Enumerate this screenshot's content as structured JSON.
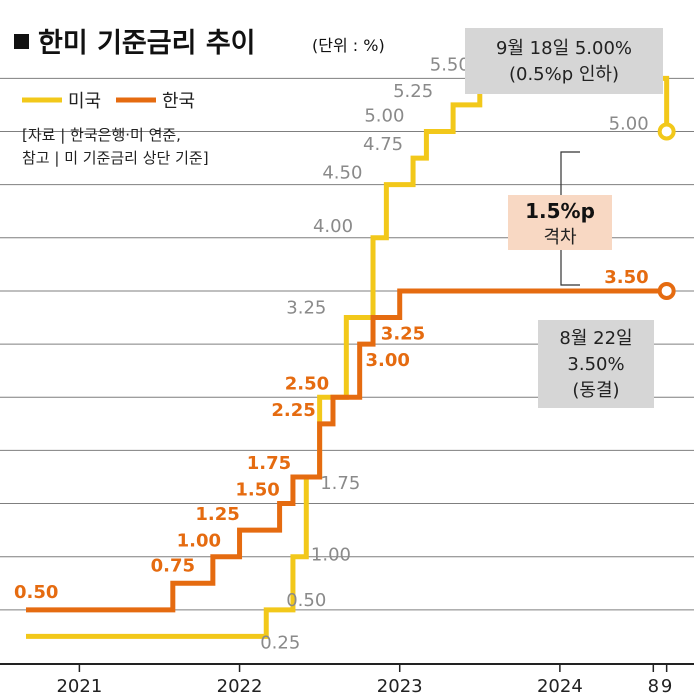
{
  "title": "한미 기준금리 추이",
  "unit": "(단위 : %)",
  "legend": [
    {
      "label": "미국",
      "color": "#f2c81a"
    },
    {
      "label": "한국",
      "color": "#e56b10"
    }
  ],
  "source_lines": [
    "[자료 | 한국은행·미 연준,",
    "참고 | 미 기준금리 상단 기준]"
  ],
  "callouts": {
    "us": [
      "9월 18일 5.00%",
      "(0.5%p 인하)"
    ],
    "kr": [
      "8월 22일",
      "3.50%",
      "(동결)"
    ],
    "gap": [
      "1.5%p",
      "격차"
    ]
  },
  "colors": {
    "us": "#f2c81a",
    "kr": "#e56b10",
    "grid": "#7f7f7f",
    "callout_bg": "#d6d6d6",
    "gap_bg": "#f8d8c3"
  },
  "chart_data": {
    "type": "line",
    "step": true,
    "x_ticks": [
      {
        "label": "2021",
        "x": "2021-01"
      },
      {
        "label": "2022",
        "x": "2022-01"
      },
      {
        "label": "2023",
        "x": "2023-01"
      },
      {
        "label": "2024",
        "x": "2024-01"
      },
      {
        "label": "8",
        "x": "2024-08"
      },
      {
        "label": "9",
        "x": "2024-09"
      }
    ],
    "xlim": [
      "2020-09",
      "2024-10"
    ],
    "ylim": [
      0,
      6
    ],
    "grid": true,
    "legend_position": "top-left",
    "series": [
      {
        "name": "미국",
        "color": "#f2c81a",
        "points": [
          {
            "x": "2020-09",
            "y": 0.25
          },
          {
            "x": "2022-03",
            "y": 0.5,
            "label": "0.50"
          },
          {
            "x": "2022-05",
            "y": 1.0,
            "label": "1.00"
          },
          {
            "x": "2022-06",
            "y": 1.75,
            "label": "1.75"
          },
          {
            "x": "2022-07",
            "y": 2.5
          },
          {
            "x": "2022-09",
            "y": 3.25,
            "label": "3.25"
          },
          {
            "x": "2022-11",
            "y": 4.0,
            "label": "4.00"
          },
          {
            "x": "2022-12",
            "y": 4.5,
            "label": "4.50"
          },
          {
            "x": "2023-02",
            "y": 4.75,
            "label": "4.75"
          },
          {
            "x": "2023-03",
            "y": 5.0,
            "label": "5.00"
          },
          {
            "x": "2023-05",
            "y": 5.25,
            "label": "5.25"
          },
          {
            "x": "2023-07",
            "y": 5.5,
            "label": "5.50"
          },
          {
            "x": "2024-09",
            "y": 5.0,
            "label": "5.00"
          }
        ],
        "extra_labels": [
          {
            "x": "2020-09",
            "y": 0.25,
            "label": "0.25"
          }
        ]
      },
      {
        "name": "한국",
        "color": "#e56b10",
        "points": [
          {
            "x": "2020-09",
            "y": 0.5,
            "label": "0.50"
          },
          {
            "x": "2021-08",
            "y": 0.75,
            "label": "0.75"
          },
          {
            "x": "2021-11",
            "y": 1.0,
            "label": "1.00"
          },
          {
            "x": "2022-01",
            "y": 1.25,
            "label": "1.25"
          },
          {
            "x": "2022-04",
            "y": 1.5,
            "label": "1.50"
          },
          {
            "x": "2022-05",
            "y": 1.75,
            "label": "1.75"
          },
          {
            "x": "2022-07",
            "y": 2.25,
            "label": "2.25"
          },
          {
            "x": "2022-08",
            "y": 2.5,
            "label": "2.50"
          },
          {
            "x": "2022-10",
            "y": 3.0,
            "label": "3.00"
          },
          {
            "x": "2022-11",
            "y": 3.25,
            "label": "3.25"
          },
          {
            "x": "2023-01",
            "y": 3.5,
            "label": "3.50"
          }
        ],
        "end": {
          "x": "2024-09",
          "y": 3.5
        }
      }
    ]
  }
}
